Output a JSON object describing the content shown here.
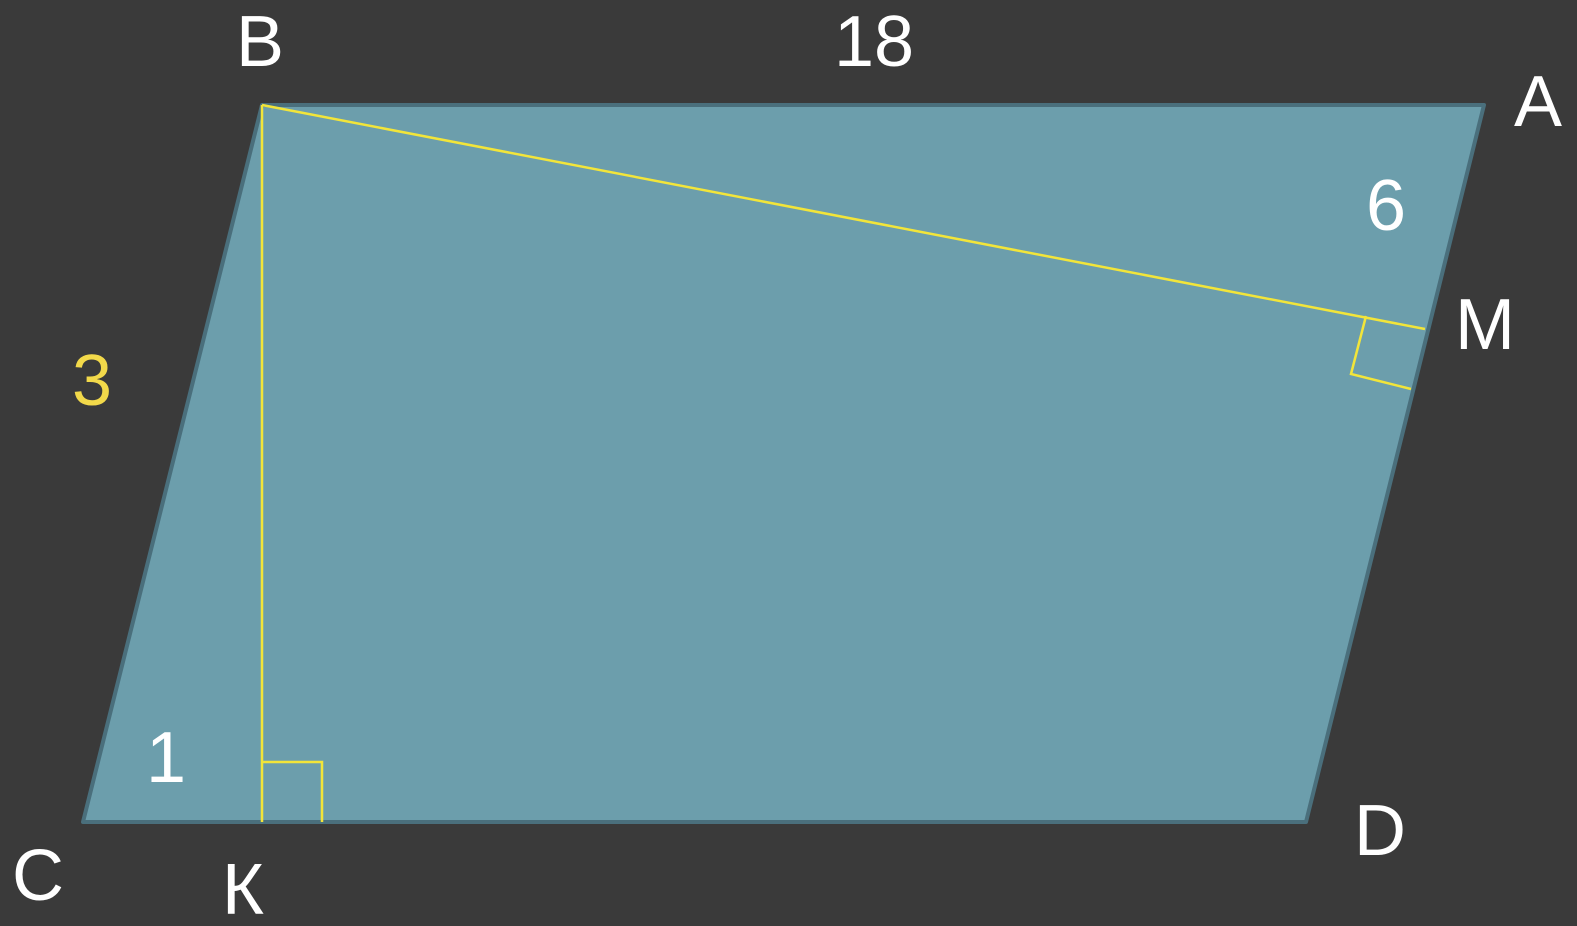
{
  "diagram": {
    "vertices": {
      "A": "A",
      "B": "B",
      "C": "C",
      "D": "D",
      "K": "К",
      "M": "M"
    },
    "measurements": {
      "side_ba": "18",
      "segment_am": "6",
      "side_bc": "3",
      "segment_ck": "1"
    },
    "colors": {
      "background": "#3a3a3a",
      "fill": "#6c9eac",
      "outline": "#4a6f7c",
      "auxiliary": "#f2e53a",
      "label": "#ffffff",
      "highlight_label": "#f2d94a"
    }
  }
}
